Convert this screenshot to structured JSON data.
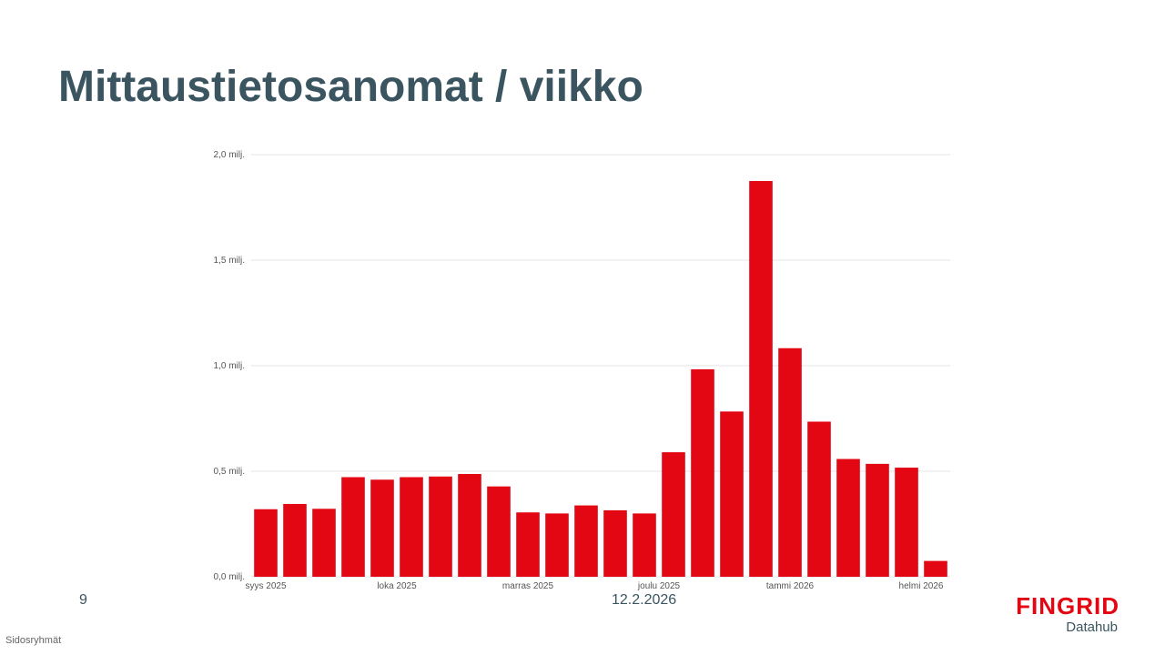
{
  "slide": {
    "title": "Mittaustietosanomat / viikko",
    "page_number": "9",
    "date": "12.2.2026",
    "footer_section": "Sidosryhmät"
  },
  "logo": {
    "name": "FINGRID",
    "subtitle": "Datahub"
  },
  "colors": {
    "bar": "#e30613",
    "title": "#3a5560",
    "grid": "#e6e6e6"
  },
  "chart_data": {
    "type": "bar",
    "title": "",
    "xlabel": "",
    "ylabel": "",
    "ylim": [
      0,
      2000000
    ],
    "grid": true,
    "y_ticks": [
      {
        "value": 0,
        "label": "0,0 milj."
      },
      {
        "value": 500000,
        "label": "0,5 milj."
      },
      {
        "value": 1000000,
        "label": "1,0 milj."
      },
      {
        "value": 1500000,
        "label": "1,5 milj."
      },
      {
        "value": 2000000,
        "label": "2,0 milj."
      }
    ],
    "x_ticks": [
      {
        "index": 0,
        "label": "syys 2025"
      },
      {
        "index": 4.5,
        "label": "loka 2025"
      },
      {
        "index": 9,
        "label": "marras 2025"
      },
      {
        "index": 13.5,
        "label": "joulu 2025"
      },
      {
        "index": 18,
        "label": "tammi 2026"
      },
      {
        "index": 22.5,
        "label": "helmi 2026"
      }
    ],
    "series": [
      {
        "values": [
          320000,
          345000,
          322000,
          472000,
          460000,
          472000,
          475000,
          487000,
          428000,
          305000,
          300000,
          338000,
          315000,
          300000,
          590000,
          983000,
          783000,
          1875000,
          1083000,
          735000,
          558000,
          535000,
          517000,
          75000
        ]
      }
    ]
  }
}
